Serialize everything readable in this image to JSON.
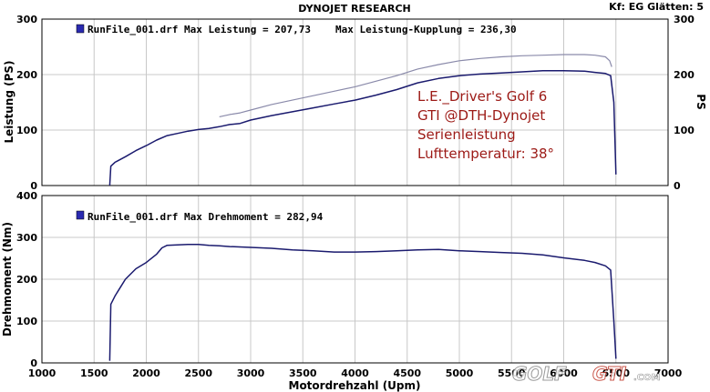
{
  "header": {
    "title": "DYNOJET RESEARCH",
    "settings": "Kf: EG  Glätten: 5"
  },
  "colors": {
    "background": "#ffffff",
    "frame": "#000000",
    "grid": "#c8c8c8",
    "series_primary": "#1a1a6e",
    "series_secondary": "#8a8aaa",
    "annotation": "#9c1a16",
    "legend_marker": "#2a2ab0"
  },
  "annotation": [
    "L.E._Driver's Golf 6",
    "GTI @DTH-Dynojet",
    "Serienleistung",
    "Lufttemperatur: 38°"
  ],
  "watermark": {
    "text_left": "GOLF",
    "text_right": "GTI",
    "suffix": ".COM"
  },
  "chart_data": [
    {
      "type": "line",
      "ylabel": "Leistung (PS)",
      "ylabel_right": "PS",
      "ylim": [
        0,
        300
      ],
      "yticks": [
        0,
        100,
        200,
        300
      ],
      "xlim": [
        1000,
        7000
      ],
      "grid": true,
      "legend_label": "RunFile_001.drf Max Leistung = 207,73",
      "legend_label_2": "Max Leistung-Kupplung = 236,30",
      "series": [
        {
          "name": "RunFile_001.drf Max Leistung = 207,73",
          "role": "primary",
          "x": [
            1650,
            1660,
            1700,
            1800,
            1900,
            2000,
            2100,
            2200,
            2300,
            2400,
            2500,
            2600,
            2700,
            2800,
            2900,
            3000,
            3200,
            3400,
            3600,
            3800,
            4000,
            4200,
            4400,
            4600,
            4800,
            5000,
            5200,
            5400,
            5600,
            5800,
            6000,
            6200,
            6300,
            6400,
            6450,
            6480,
            6500
          ],
          "y": [
            0,
            35,
            42,
            52,
            63,
            72,
            82,
            90,
            94,
            98,
            101,
            103,
            106,
            110,
            112,
            118,
            126,
            133,
            140,
            147,
            154,
            163,
            173,
            185,
            193,
            198,
            201,
            203,
            205,
            207,
            207,
            206,
            204,
            202,
            198,
            150,
            20
          ]
        },
        {
          "name": "Max Leistung-Kupplung = 236,30",
          "role": "secondary",
          "x": [
            2700,
            2800,
            2900,
            3000,
            3200,
            3400,
            3600,
            3800,
            4000,
            4200,
            4400,
            4600,
            4800,
            5000,
            5200,
            5400,
            5600,
            5800,
            6000,
            6200,
            6300,
            6400,
            6440,
            6460
          ],
          "y": [
            124,
            128,
            131,
            136,
            146,
            154,
            162,
            170,
            178,
            188,
            198,
            210,
            218,
            225,
            229,
            232,
            234,
            235,
            236,
            236,
            235,
            232,
            225,
            214
          ]
        }
      ]
    },
    {
      "type": "line",
      "ylabel": "Drehmoment (Nm)",
      "xlabel": "Motordrehzahl (Upm)",
      "ylim": [
        0,
        400
      ],
      "yticks": [
        0,
        100,
        200,
        300,
        400
      ],
      "xlim": [
        1000,
        7000
      ],
      "xticks": [
        1000,
        1500,
        2000,
        2500,
        3000,
        3500,
        4000,
        4500,
        5000,
        5500,
        6000,
        6500,
        7000
      ],
      "grid": true,
      "legend_label": "RunFile_001.drf Max Drehmoment = 282,94",
      "series": [
        {
          "name": "RunFile_001.drf Max Drehmoment = 282,94",
          "role": "primary",
          "x": [
            1650,
            1660,
            1700,
            1750,
            1800,
            1900,
            2000,
            2100,
            2150,
            2200,
            2300,
            2400,
            2500,
            2600,
            2700,
            2800,
            3000,
            3200,
            3400,
            3600,
            3800,
            4000,
            4200,
            4400,
            4600,
            4800,
            5000,
            5200,
            5400,
            5600,
            5800,
            6000,
            6200,
            6300,
            6400,
            6450,
            6480,
            6500
          ],
          "y": [
            5,
            140,
            160,
            180,
            200,
            225,
            240,
            260,
            275,
            281,
            282,
            283,
            283,
            281,
            280,
            278,
            276,
            274,
            270,
            268,
            265,
            265,
            266,
            268,
            270,
            271,
            268,
            266,
            264,
            262,
            258,
            251,
            245,
            240,
            232,
            222,
            100,
            10
          ]
        }
      ]
    }
  ]
}
